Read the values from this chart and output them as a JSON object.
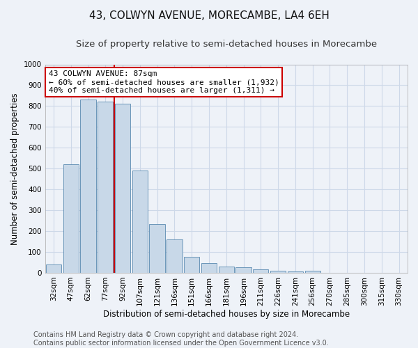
{
  "title": "43, COLWYN AVENUE, MORECAMBE, LA4 6EH",
  "subtitle": "Size of property relative to semi-detached houses in Morecambe",
  "xlabel": "Distribution of semi-detached houses by size in Morecambe",
  "ylabel": "Number of semi-detached properties",
  "footer_line1": "Contains HM Land Registry data © Crown copyright and database right 2024.",
  "footer_line2": "Contains public sector information licensed under the Open Government Licence v3.0.",
  "categories": [
    "32sqm",
    "47sqm",
    "62sqm",
    "77sqm",
    "92sqm",
    "107sqm",
    "121sqm",
    "136sqm",
    "151sqm",
    "166sqm",
    "181sqm",
    "196sqm",
    "211sqm",
    "226sqm",
    "241sqm",
    "256sqm",
    "270sqm",
    "285sqm",
    "300sqm",
    "315sqm",
    "330sqm"
  ],
  "values": [
    40,
    520,
    830,
    820,
    810,
    490,
    235,
    160,
    75,
    45,
    30,
    25,
    15,
    10,
    5,
    10,
    0,
    0,
    0,
    0,
    0
  ],
  "bar_color": "#c8d8e8",
  "bar_edge_color": "#5a8ab0",
  "property_label": "43 COLWYN AVENUE: 87sqm",
  "annotation_line1": "← 60% of semi-detached houses are smaller (1,932)",
  "annotation_line2": "40% of semi-detached houses are larger (1,311) →",
  "annotation_box_facecolor": "#ffffff",
  "annotation_box_edgecolor": "#cc0000",
  "vline_color": "#cc0000",
  "vline_x": 3.5,
  "ylim": [
    0,
    1000
  ],
  "yticks": [
    0,
    100,
    200,
    300,
    400,
    500,
    600,
    700,
    800,
    900,
    1000
  ],
  "grid_color": "#cdd8e8",
  "background_color": "#eef2f8",
  "title_fontsize": 11,
  "subtitle_fontsize": 9.5,
  "axis_label_fontsize": 8.5,
  "tick_fontsize": 7.5,
  "annotation_fontsize": 8,
  "footer_fontsize": 7
}
